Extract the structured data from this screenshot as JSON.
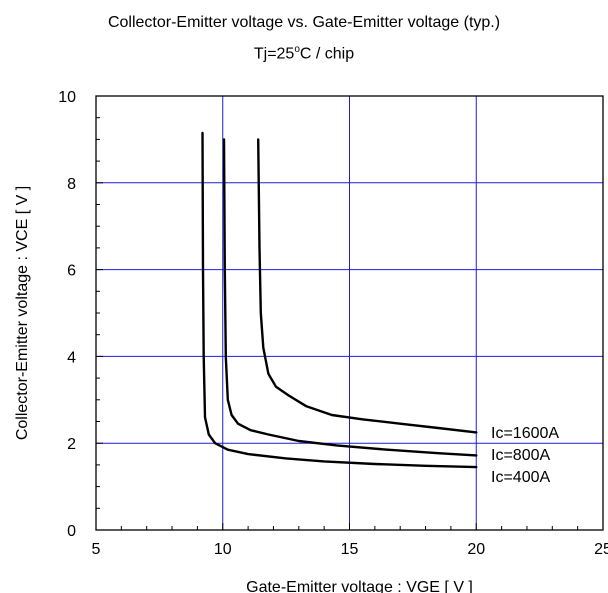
{
  "chart_data": {
    "type": "line",
    "title": "Collector-Emitter voltage vs. Gate-Emitter voltage (typ.)",
    "subtitle": "Tj=25°C / chip",
    "title_line2_prefix": "Tj=25",
    "title_line2_sup": "o",
    "title_line2_suffix": "C / chip",
    "xlabel": "Gate-Emitter voltage : VGE [ V ]",
    "ylabel": "Collector-Emitter voltage : VCE [ V ]",
    "xlim": [
      5,
      25
    ],
    "ylim": [
      0,
      10
    ],
    "xticks": [
      "5",
      "10",
      "15",
      "20",
      "25"
    ],
    "yticks": [
      "0",
      "2",
      "4",
      "6",
      "8",
      "10"
    ],
    "grid": true,
    "grid_color": "#1f1fd6",
    "line_color": "#000000",
    "series": [
      {
        "name": "Ic=400A",
        "x": [
          9.2,
          9.22,
          9.25,
          9.3,
          9.45,
          9.7,
          10.2,
          11.0,
          12.5,
          14.0,
          16.0,
          18.0,
          20.0
        ],
        "y": [
          9.15,
          6.0,
          4.0,
          2.6,
          2.2,
          2.0,
          1.85,
          1.75,
          1.65,
          1.58,
          1.52,
          1.48,
          1.45
        ]
      },
      {
        "name": "Ic=800A",
        "x": [
          10.05,
          10.08,
          10.12,
          10.2,
          10.35,
          10.6,
          11.1,
          11.8,
          13.0,
          14.5,
          16.5,
          18.5,
          20.0
        ],
        "y": [
          9.0,
          6.0,
          4.0,
          3.0,
          2.65,
          2.45,
          2.3,
          2.2,
          2.05,
          1.95,
          1.85,
          1.77,
          1.72
        ]
      },
      {
        "name": "Ic=1600A",
        "x": [
          11.4,
          11.45,
          11.5,
          11.6,
          11.8,
          12.1,
          12.6,
          13.3,
          14.3,
          15.5,
          17.0,
          18.5,
          20.0
        ],
        "y": [
          9.0,
          6.5,
          5.0,
          4.2,
          3.6,
          3.3,
          3.1,
          2.85,
          2.65,
          2.55,
          2.45,
          2.35,
          2.25
        ]
      }
    ],
    "legend_labels": [
      "Ic=1600A",
      "Ic=800A",
      "Ic=400A"
    ]
  }
}
